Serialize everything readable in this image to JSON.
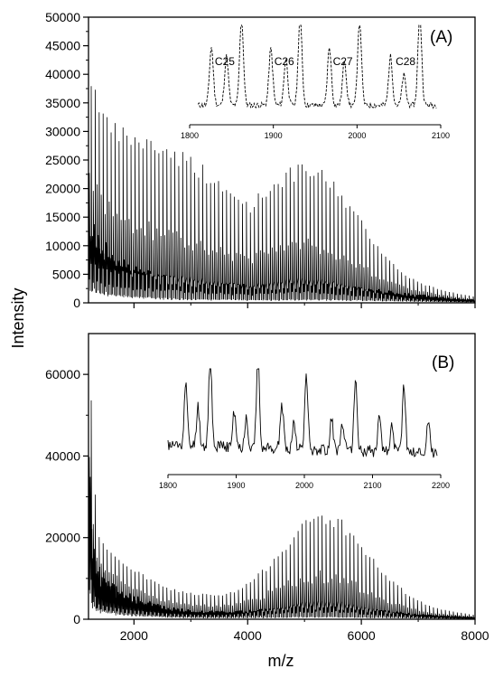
{
  "figure": {
    "x_axis_label": "m/z",
    "y_axis_label": "Intensity"
  },
  "chart_data": [
    {
      "id": "A",
      "type": "line",
      "panel_label": "(A)",
      "xlim": [
        1200,
        8000
      ],
      "ylim": [
        0,
        50000
      ],
      "x_ticks": [
        2000,
        4000,
        6000,
        8000
      ],
      "x_tick_labels_shown": false,
      "y_ticks": [
        0,
        5000,
        10000,
        15000,
        20000,
        25000,
        30000,
        35000,
        40000,
        45000,
        50000
      ],
      "y_tick_labels": [
        "0",
        "5000",
        "10000",
        "15000",
        "20000",
        "25000",
        "30000",
        "35000",
        "40000",
        "45000",
        "50000"
      ],
      "peak_spacing": 70,
      "peak_envelope": {
        "x": [
          1200,
          1500,
          2000,
          2500,
          3000,
          3500,
          4000,
          4300,
          4600,
          4900,
          5200,
          5500,
          5800,
          6200,
          6600,
          7000,
          7500,
          8000
        ],
        "y": [
          41000,
          32000,
          30000,
          28500,
          26000,
          21000,
          18000,
          21000,
          23500,
          24500,
          24000,
          21500,
          17000,
          11000,
          6000,
          3500,
          2000,
          1000
        ]
      },
      "baseline_envelope": {
        "x": [
          1200,
          1500,
          2000,
          2500,
          3000,
          3500,
          4000,
          4500,
          5000,
          5500,
          6000,
          6500,
          7000,
          7500,
          8000
        ],
        "y": [
          14000,
          9500,
          6000,
          4500,
          3800,
          3200,
          3000,
          3100,
          3300,
          3100,
          2600,
          2000,
          1400,
          900,
          500
        ]
      },
      "inset": {
        "type": "line",
        "xlim": [
          1800,
          2100
        ],
        "x_ticks": [
          1800,
          1900,
          2000,
          2100
        ],
        "x_tick_labels": [
          "1800",
          "1900",
          "2000",
          "2100"
        ],
        "style": "dashed",
        "peaks": [
          {
            "x": 1826,
            "h": 0.62
          },
          {
            "x": 1844,
            "h": 0.52
          },
          {
            "x": 1862,
            "h": 0.92
          },
          {
            "x": 1897,
            "h": 0.6
          },
          {
            "x": 1915,
            "h": 0.5
          },
          {
            "x": 1932,
            "h": 0.95
          },
          {
            "x": 1967,
            "h": 0.62
          },
          {
            "x": 1985,
            "h": 0.48
          },
          {
            "x": 2003,
            "h": 0.92
          },
          {
            "x": 2040,
            "h": 0.52
          },
          {
            "x": 2056,
            "h": 0.32
          },
          {
            "x": 2075,
            "h": 0.97
          }
        ],
        "annotations": [
          {
            "text": "C25",
            "x": 1842
          },
          {
            "text": "C26",
            "x": 1913
          },
          {
            "text": "C27",
            "x": 1983
          },
          {
            "text": "C28",
            "x": 2058
          }
        ]
      }
    },
    {
      "id": "B",
      "type": "line",
      "panel_label": "(B)",
      "xlim": [
        1200,
        8000
      ],
      "ylim": [
        0,
        70000
      ],
      "x_ticks": [
        2000,
        4000,
        6000,
        8000
      ],
      "x_tick_labels": [
        "2000",
        "4000",
        "6000",
        "8000"
      ],
      "y_ticks": [
        0,
        20000,
        40000,
        60000
      ],
      "y_tick_labels": [
        "0",
        "20000",
        "40000",
        "60000"
      ],
      "peak_spacing": 70,
      "peak_envelope": {
        "x": [
          1200,
          1300,
          1500,
          2000,
          2500,
          3000,
          3500,
          3800,
          4200,
          4600,
          5000,
          5200,
          5600,
          6000,
          6400,
          6800,
          7200,
          7600,
          8000
        ],
        "y": [
          54000,
          21000,
          17000,
          12000,
          8000,
          6500,
          6000,
          7500,
          12000,
          19000,
          25000,
          27000,
          25000,
          18000,
          11000,
          6000,
          3000,
          1800,
          1000
        ]
      },
      "baseline_envelope": {
        "x": [
          1200,
          1300,
          1500,
          2000,
          2500,
          3000,
          3500,
          4000,
          4500,
          5000,
          5500,
          6000,
          6500,
          7000,
          7500,
          8000
        ],
        "y": [
          32000,
          14000,
          9500,
          5500,
          3000,
          2200,
          1900,
          2100,
          2600,
          3100,
          3000,
          2400,
          1800,
          1200,
          800,
          500
        ]
      },
      "inset": {
        "type": "line",
        "xlim": [
          1800,
          2200
        ],
        "x_ticks": [
          1800,
          1900,
          2000,
          2100,
          2200
        ],
        "x_tick_labels": [
          "1800",
          "1900",
          "2000",
          "2100",
          "2200"
        ],
        "style": "solid",
        "peaks": [
          {
            "x": 1826,
            "h": 0.62
          },
          {
            "x": 1844,
            "h": 0.4
          },
          {
            "x": 1862,
            "h": 0.95
          },
          {
            "x": 1897,
            "h": 0.35
          },
          {
            "x": 1915,
            "h": 0.32
          },
          {
            "x": 1932,
            "h": 0.88
          },
          {
            "x": 1967,
            "h": 0.45
          },
          {
            "x": 1985,
            "h": 0.28
          },
          {
            "x": 2003,
            "h": 0.75
          },
          {
            "x": 2040,
            "h": 0.32
          },
          {
            "x": 2056,
            "h": 0.25
          },
          {
            "x": 2075,
            "h": 0.72
          },
          {
            "x": 2110,
            "h": 0.4
          },
          {
            "x": 2128,
            "h": 0.25
          },
          {
            "x": 2146,
            "h": 0.68
          },
          {
            "x": 2182,
            "h": 0.33
          }
        ]
      }
    }
  ]
}
